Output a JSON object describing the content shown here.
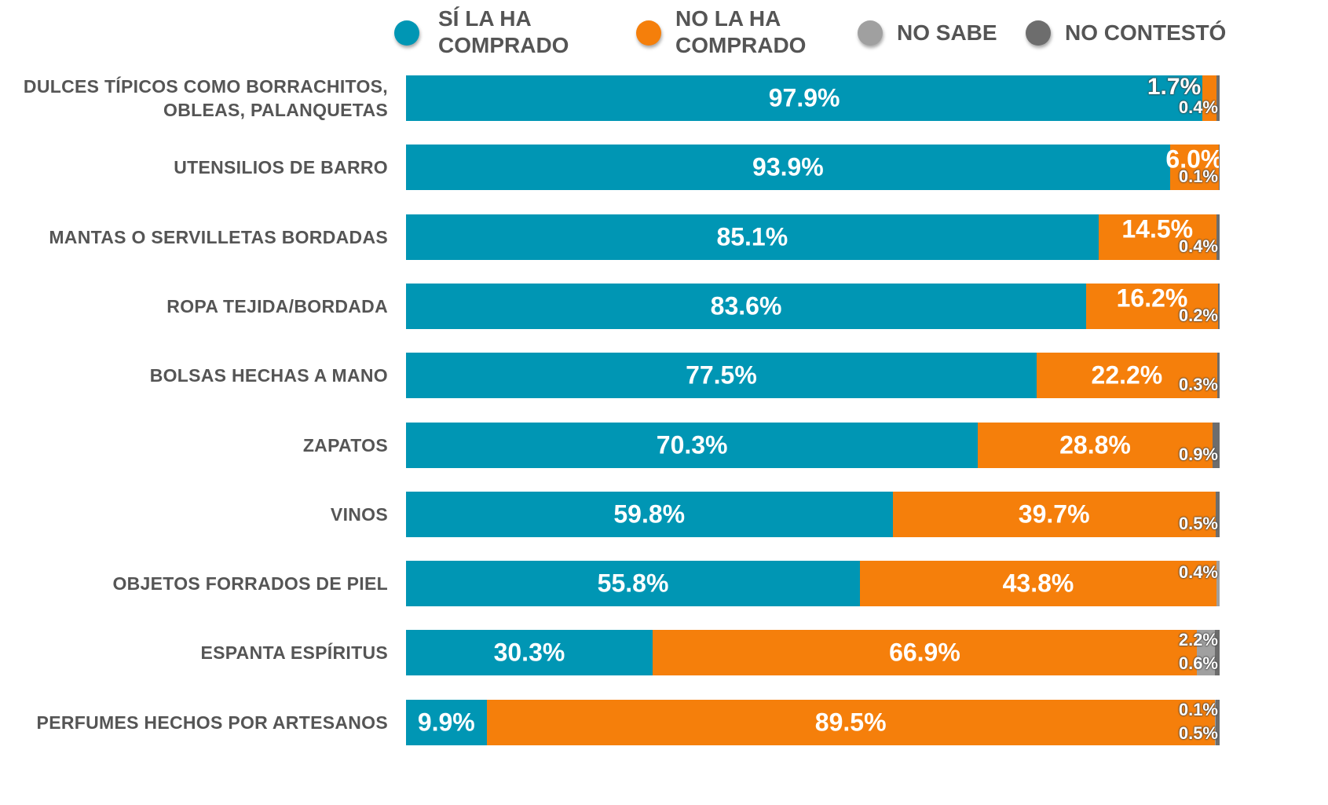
{
  "chart_data": {
    "type": "stacked-bar-horizontal",
    "categories": [
      "DULCES TÍPICOS COMO BORRACHITOS, OBLEAS, PALANQUETAS",
      "UTENSILIOS DE BARRO",
      "MANTAS O SERVILLETAS BORDADAS",
      "ROPA TEJIDA/BORDADA",
      "BOLSAS HECHAS A MANO",
      "ZAPATOS",
      "VINOS",
      "OBJETOS FORRADOS DE PIEL",
      "ESPANTA ESPÍRITUS",
      "PERFUMES HECHOS POR ARTESANOS"
    ],
    "series": [
      {
        "name": "SÍ LA HA COMPRADO",
        "color": "#0096b4",
        "values": [
          97.9,
          93.9,
          85.1,
          83.6,
          77.5,
          70.3,
          59.8,
          55.8,
          30.3,
          9.9
        ],
        "value_labels": [
          "97.9%",
          "93.9%",
          "85.1%",
          "83.6%",
          "77.5%",
          "70.3%",
          "59.8%",
          "55.8%",
          "30.3%",
          "9.9%"
        ]
      },
      {
        "name": "NO LA HA COMPRADO",
        "color": "#f57f0b",
        "values": [
          1.7,
          6.0,
          14.5,
          16.2,
          22.2,
          28.8,
          39.7,
          43.8,
          66.9,
          89.5
        ],
        "value_labels": [
          "1.7%",
          "6.0%",
          "14.5%",
          "16.2%",
          "22.2%",
          "28.8%",
          "39.7%",
          "43.8%",
          "66.9%",
          "89.5%"
        ]
      },
      {
        "name": "NO SABE",
        "color": "#a0a0a0",
        "values": [
          null,
          null,
          null,
          null,
          null,
          null,
          null,
          0.4,
          2.2,
          0.1
        ],
        "value_labels": [
          null,
          null,
          null,
          null,
          null,
          null,
          null,
          "0.4%",
          "2.2%",
          "0.1%"
        ]
      },
      {
        "name": "NO CONTESTÓ",
        "color": "#6d6d6d",
        "values": [
          0.4,
          0.1,
          0.4,
          0.2,
          0.3,
          0.9,
          0.5,
          null,
          0.6,
          0.5
        ],
        "value_labels": [
          "0.4%",
          "0.1%",
          "0.4%",
          "0.2%",
          "0.3%",
          "0.9%",
          "0.5%",
          null,
          "0.6%",
          "0.5%"
        ]
      }
    ]
  }
}
